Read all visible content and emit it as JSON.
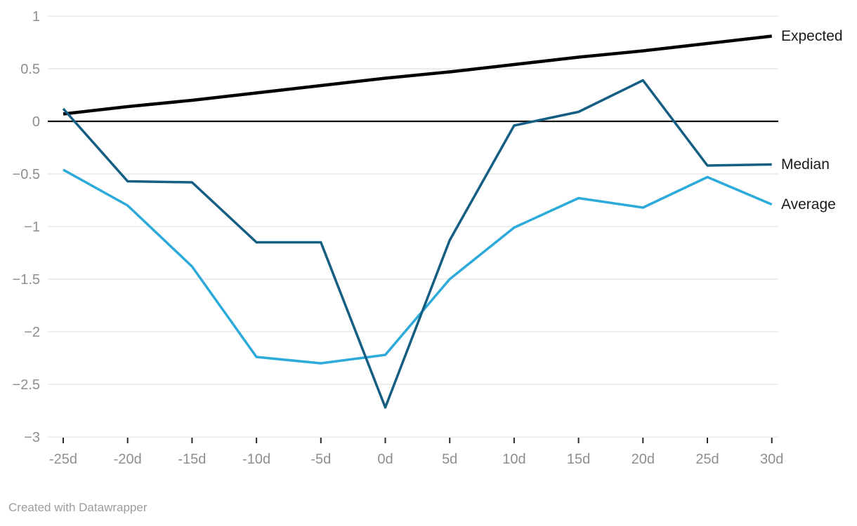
{
  "chart_data": {
    "type": "line",
    "title": "",
    "xlabel": "",
    "ylabel": "",
    "x_tick_labels": [
      "-25d",
      "-20d",
      "-15d",
      "-10d",
      "-5d",
      "0d",
      "5d",
      "10d",
      "15d",
      "20d",
      "25d",
      "30d"
    ],
    "y_ticks": [
      1,
      0.5,
      0,
      -0.5,
      -1,
      -1.5,
      -2,
      -2.5,
      -3
    ],
    "y_tick_labels": [
      "1",
      "0.5",
      "0",
      "−0.5",
      "−1",
      "−1.5",
      "−2",
      "−2.5",
      "−3"
    ],
    "ylim": [
      -3,
      1
    ],
    "grid": true,
    "zero_baseline": true,
    "legend_position": "line-end-right",
    "series": [
      {
        "name": "Expected",
        "color": "#000000",
        "stroke_width": 4.5,
        "values": [
          0.07,
          0.14,
          0.2,
          0.27,
          0.34,
          0.41,
          0.47,
          0.54,
          0.61,
          0.67,
          0.74,
          0.81
        ]
      },
      {
        "name": "Average",
        "color": "#2caad9",
        "stroke_width": 3.5,
        "values": [
          -0.46,
          -0.8,
          -1.38,
          -2.24,
          -2.3,
          -2.22,
          -1.5,
          -1.01,
          -0.73,
          -0.82,
          -0.53,
          -0.79
        ]
      },
      {
        "name": "Median",
        "color": "#155e83",
        "stroke_width": 3.5,
        "values": [
          0.12,
          -0.57,
          -0.58,
          -1.15,
          -1.15,
          -2.72,
          -1.13,
          -0.04,
          0.09,
          0.39,
          -0.42,
          -0.41
        ]
      }
    ]
  },
  "footer": {
    "attribution": "Created with Datawrapper"
  },
  "style": {
    "grid_color": "#e7e7e7",
    "zero_line_color": "#111111",
    "axis_text_color": "#8e8e8e",
    "tick_mark_color": "#2b2b2b",
    "series_label_color": "#1a1a1a",
    "attribution_color": "#9d9d9d"
  }
}
